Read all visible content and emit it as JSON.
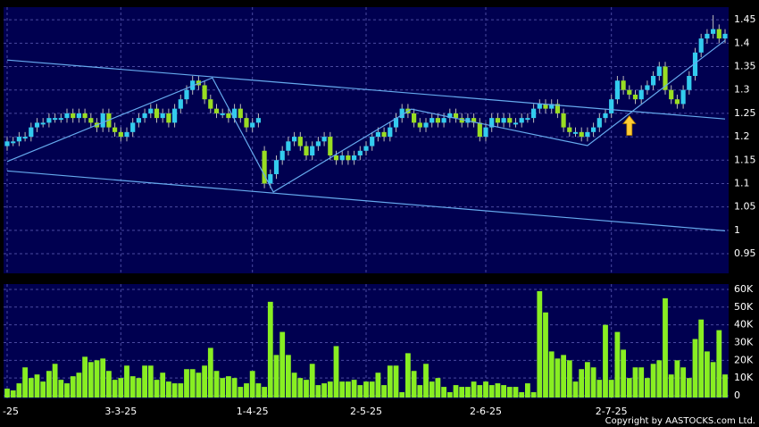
{
  "chart_data": {
    "type": "candlestick",
    "x": [
      "-25",
      null,
      null,
      null,
      null,
      null,
      null,
      null,
      null,
      null,
      null,
      null,
      null,
      null,
      null,
      null,
      null,
      null,
      null,
      "3-3-25",
      null,
      null,
      null,
      null,
      null,
      null,
      null,
      null,
      null,
      null,
      null,
      null,
      null,
      null,
      null,
      null,
      null,
      null,
      null,
      null,
      null,
      "1-4-25",
      null,
      null,
      null,
      null,
      null,
      null,
      null,
      null,
      null,
      null,
      null,
      null,
      null,
      null,
      null,
      null,
      null,
      null,
      "2-5-25",
      null,
      null,
      null,
      null,
      null,
      null,
      null,
      null,
      null,
      null,
      null,
      null,
      null,
      null,
      null,
      null,
      null,
      null,
      null,
      "2-6-25",
      null,
      null,
      null,
      null,
      null,
      null,
      null,
      null,
      null,
      null,
      null,
      null,
      null,
      null,
      null,
      null,
      null,
      null,
      null,
      null,
      "2-7-25",
      null,
      null,
      null,
      null,
      null,
      null,
      null,
      null,
      null,
      null,
      null,
      null,
      null,
      null,
      null,
      null,
      null,
      null,
      null
    ],
    "open": [
      1.18,
      1.19,
      1.19,
      1.2,
      1.2,
      1.22,
      1.23,
      1.23,
      1.24,
      1.24,
      1.24,
      1.25,
      1.24,
      1.25,
      1.24,
      1.23,
      1.22,
      1.25,
      1.22,
      1.21,
      1.2,
      1.21,
      1.23,
      1.24,
      1.25,
      1.26,
      1.24,
      1.25,
      1.23,
      1.26,
      1.28,
      1.3,
      1.32,
      1.31,
      1.28,
      1.26,
      1.25,
      1.25,
      1.24,
      1.26,
      1.24,
      1.22,
      1.23,
      1.17,
      1.1,
      1.12,
      1.15,
      1.17,
      1.19,
      1.2,
      1.18,
      1.16,
      1.18,
      1.19,
      1.2,
      1.16,
      1.15,
      1.16,
      1.15,
      1.16,
      1.17,
      1.18,
      1.2,
      1.21,
      1.2,
      1.22,
      1.24,
      1.26,
      1.25,
      1.23,
      1.22,
      1.23,
      1.24,
      1.23,
      1.24,
      1.25,
      1.24,
      1.23,
      1.24,
      1.23,
      1.2,
      1.22,
      1.24,
      1.23,
      1.24,
      1.23,
      1.23,
      1.24,
      1.24,
      1.26,
      1.27,
      1.26,
      1.27,
      1.25,
      1.22,
      1.21,
      1.21,
      1.2,
      1.21,
      1.22,
      1.24,
      1.25,
      1.28,
      1.32,
      1.3,
      1.29,
      1.28,
      1.3,
      1.31,
      1.33,
      1.35,
      1.3,
      1.28,
      1.27,
      1.3,
      1.33,
      1.38,
      1.41,
      1.42,
      1.43,
      1.41
    ],
    "high": [
      1.2,
      1.2,
      1.21,
      1.21,
      1.23,
      1.24,
      1.24,
      1.25,
      1.25,
      1.25,
      1.26,
      1.26,
      1.26,
      1.26,
      1.25,
      1.24,
      1.26,
      1.26,
      1.23,
      1.22,
      1.22,
      1.24,
      1.25,
      1.26,
      1.27,
      1.27,
      1.26,
      1.26,
      1.27,
      1.29,
      1.31,
      1.33,
      1.33,
      1.32,
      1.29,
      1.27,
      1.26,
      1.26,
      1.27,
      1.27,
      1.25,
      1.24,
      1.25,
      1.18,
      1.13,
      1.16,
      1.18,
      1.2,
      1.21,
      1.21,
      1.19,
      1.19,
      1.2,
      1.21,
      1.21,
      1.17,
      1.17,
      1.17,
      1.17,
      1.18,
      1.19,
      1.21,
      1.22,
      1.22,
      1.23,
      1.25,
      1.27,
      1.27,
      1.26,
      1.24,
      1.24,
      1.25,
      1.25,
      1.25,
      1.26,
      1.26,
      1.25,
      1.25,
      1.25,
      1.24,
      1.23,
      1.25,
      1.25,
      1.25,
      1.25,
      1.24,
      1.25,
      1.25,
      1.27,
      1.28,
      1.28,
      1.28,
      1.28,
      1.26,
      1.23,
      1.22,
      1.22,
      1.22,
      1.23,
      1.25,
      1.26,
      1.29,
      1.33,
      1.33,
      1.31,
      1.3,
      1.31,
      1.32,
      1.34,
      1.36,
      1.36,
      1.31,
      1.29,
      1.31,
      1.34,
      1.39,
      1.42,
      1.43,
      1.46,
      1.44,
      1.43
    ],
    "low": [
      1.17,
      1.18,
      1.18,
      1.19,
      1.19,
      1.21,
      1.22,
      1.22,
      1.23,
      1.23,
      1.23,
      1.23,
      1.23,
      1.23,
      1.22,
      1.21,
      1.21,
      1.21,
      1.2,
      1.19,
      1.19,
      1.2,
      1.22,
      1.23,
      1.24,
      1.23,
      1.23,
      1.22,
      1.22,
      1.25,
      1.27,
      1.29,
      1.3,
      1.27,
      1.25,
      1.24,
      1.24,
      1.23,
      1.23,
      1.23,
      1.21,
      1.21,
      1.22,
      1.09,
      1.09,
      1.11,
      1.14,
      1.16,
      1.18,
      1.17,
      1.15,
      1.15,
      1.17,
      1.18,
      1.15,
      1.14,
      1.14,
      1.14,
      1.14,
      1.15,
      1.16,
      1.17,
      1.19,
      1.19,
      1.19,
      1.21,
      1.23,
      1.24,
      1.22,
      1.21,
      1.21,
      1.22,
      1.22,
      1.22,
      1.23,
      1.23,
      1.22,
      1.22,
      1.22,
      1.19,
      1.19,
      1.21,
      1.22,
      1.22,
      1.22,
      1.22,
      1.22,
      1.23,
      1.23,
      1.25,
      1.25,
      1.25,
      1.24,
      1.21,
      1.2,
      1.2,
      1.19,
      1.19,
      1.2,
      1.21,
      1.23,
      1.24,
      1.27,
      1.29,
      1.28,
      1.27,
      1.27,
      1.29,
      1.3,
      1.32,
      1.29,
      1.27,
      1.26,
      1.26,
      1.29,
      1.32,
      1.37,
      1.4,
      1.41,
      1.4,
      1.4
    ],
    "close": [
      1.19,
      1.19,
      1.2,
      1.2,
      1.22,
      1.23,
      1.23,
      1.24,
      1.24,
      1.24,
      1.25,
      1.24,
      1.25,
      1.24,
      1.23,
      1.22,
      1.25,
      1.22,
      1.21,
      1.2,
      1.21,
      1.23,
      1.24,
      1.25,
      1.26,
      1.24,
      1.25,
      1.23,
      1.26,
      1.28,
      1.3,
      1.32,
      1.31,
      1.28,
      1.26,
      1.25,
      1.25,
      1.24,
      1.26,
      1.24,
      1.22,
      1.23,
      1.24,
      1.1,
      1.12,
      1.15,
      1.17,
      1.19,
      1.2,
      1.18,
      1.16,
      1.18,
      1.19,
      1.2,
      1.16,
      1.15,
      1.16,
      1.15,
      1.16,
      1.17,
      1.18,
      1.2,
      1.21,
      1.2,
      1.22,
      1.24,
      1.26,
      1.25,
      1.23,
      1.22,
      1.23,
      1.24,
      1.23,
      1.24,
      1.25,
      1.24,
      1.23,
      1.24,
      1.23,
      1.2,
      1.22,
      1.24,
      1.23,
      1.24,
      1.23,
      1.23,
      1.24,
      1.24,
      1.26,
      1.27,
      1.26,
      1.27,
      1.25,
      1.22,
      1.21,
      1.21,
      1.2,
      1.21,
      1.22,
      1.24,
      1.25,
      1.28,
      1.32,
      1.3,
      1.29,
      1.28,
      1.3,
      1.31,
      1.33,
      1.35,
      1.3,
      1.28,
      1.27,
      1.3,
      1.33,
      1.38,
      1.41,
      1.42,
      1.43,
      1.41,
      1.42
    ],
    "up_color": "#33ccee",
    "down_color": "#99dd22",
    "ylim": [
      0.908,
      1.477
    ],
    "yticks": [
      0.95,
      1,
      1.05,
      1.1,
      1.15,
      1.2,
      1.25,
      1.3,
      1.35,
      1.4,
      1.45
    ],
    "grid": true,
    "trendlines": [
      {
        "x": [
          0,
          120
        ],
        "values": [
          1.364,
          1.238
        ],
        "color": "#66aaee"
      },
      {
        "x": [
          0,
          120
        ],
        "values": [
          1.127,
          0.999
        ],
        "color": "#66aaee"
      },
      {
        "x": [
          0,
          34.3,
          44.5,
          67.6,
          97,
          120
        ],
        "values": [
          1.147,
          1.326,
          1.082,
          1.259,
          1.181,
          1.406
        ],
        "color": "#66aaee"
      }
    ],
    "arrow": {
      "x": 104,
      "value": 1.245,
      "color": "#ffcc33"
    },
    "volume": {
      "type": "bar",
      "color": "#88ee22",
      "values": [
        4000,
        3000,
        7000,
        16000,
        10000,
        12000,
        8000,
        14000,
        18000,
        9000,
        7000,
        11000,
        13000,
        22000,
        19000,
        20000,
        21000,
        14000,
        9000,
        10000,
        17000,
        11000,
        10000,
        17000,
        17000,
        9000,
        13000,
        8000,
        7000,
        7000,
        15000,
        15000,
        13000,
        17000,
        27000,
        14000,
        10000,
        11000,
        10000,
        5000,
        7000,
        14000,
        7000,
        5000,
        53000,
        23000,
        36000,
        23000,
        13000,
        10000,
        9000,
        18000,
        6000,
        7000,
        8000,
        28000,
        8000,
        8000,
        9000,
        6000,
        8000,
        8000,
        13000,
        6000,
        17000,
        17000,
        2000,
        24000,
        14000,
        6000,
        18000,
        8000,
        10000,
        5000,
        2000,
        6000,
        5000,
        5000,
        8000,
        6000,
        8000,
        6000,
        7000,
        6000,
        5000,
        5000,
        2000,
        7000,
        2000,
        59000,
        47000,
        25000,
        21000,
        23000,
        20000,
        8000,
        15000,
        19000,
        16000,
        9000,
        40000,
        9000,
        36000,
        26000,
        10000,
        16000,
        16000,
        10000,
        18000,
        20000,
        55000,
        12000,
        20000,
        16000,
        10000,
        32000,
        43000,
        25000,
        19000,
        37000,
        12000
      ],
      "ylim": [
        0,
        63000
      ],
      "yticks": [
        0,
        {
          "value": 10000,
          "label": "10K"
        },
        {
          "value": 20000,
          "label": "20K"
        },
        {
          "value": 30000,
          "label": "30K"
        },
        {
          "value": 40000,
          "label": "40K"
        },
        {
          "value": 50000,
          "label": "50K"
        },
        {
          "value": 60000,
          "label": "60K"
        }
      ]
    },
    "copyright": "Copyright by AASTOCKS.com Ltd."
  }
}
